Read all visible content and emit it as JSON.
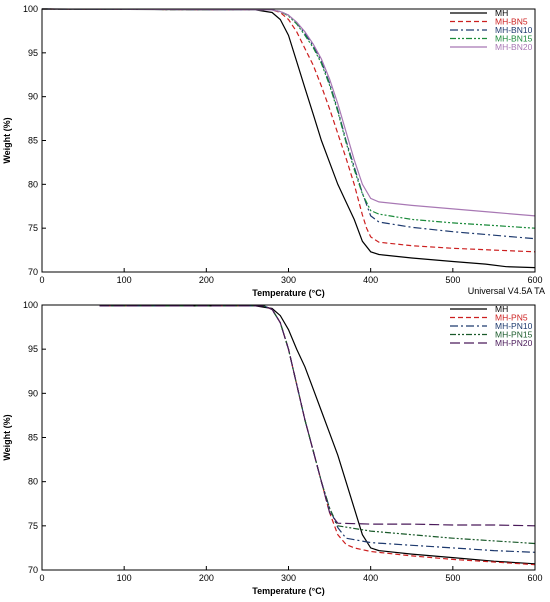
{
  "footer_text": "Universal V4.5A TA",
  "chart_data": [
    {
      "type": "line",
      "xlabel": "Temperature (°C)",
      "ylabel": "Weight (%)",
      "xlim": [
        0,
        600
      ],
      "ylim": [
        70,
        100
      ],
      "xticks": [
        0,
        100,
        200,
        300,
        400,
        500,
        600
      ],
      "yticks": [
        70,
        75,
        80,
        85,
        90,
        95,
        100
      ],
      "grid": false,
      "legend": "top-right",
      "series": [
        {
          "name": "MH",
          "color": "#000000",
          "dash": "solid",
          "x": [
            0,
            260,
            280,
            290,
            300,
            310,
            320,
            330,
            340,
            350,
            360,
            370,
            380,
            390,
            400,
            410,
            450,
            500,
            540,
            565,
            600
          ],
          "y": [
            100,
            99.9,
            99.6,
            98.8,
            97.0,
            94.0,
            91.0,
            88.0,
            85.0,
            82.5,
            80.0,
            78.0,
            76.0,
            73.5,
            72.3,
            72.0,
            71.6,
            71.2,
            70.9,
            70.6,
            70.5
          ]
        },
        {
          "name": "MH-BN5",
          "color": "#cc1f1f",
          "dash": "5,3",
          "x": [
            0,
            280,
            290,
            300,
            310,
            320,
            330,
            340,
            350,
            360,
            370,
            380,
            390,
            395,
            400,
            410,
            450,
            500,
            550,
            600
          ],
          "y": [
            100,
            99.9,
            99.6,
            98.8,
            97.4,
            95.5,
            93.6,
            91.2,
            88.6,
            85.8,
            83.0,
            80.0,
            76.5,
            75.0,
            74.0,
            73.4,
            73.0,
            72.7,
            72.5,
            72.3
          ]
        },
        {
          "name": "MH-BN10",
          "color": "#1e3a6e",
          "dash": "8,3,2,3",
          "x": [
            0,
            280,
            290,
            300,
            310,
            320,
            330,
            340,
            350,
            360,
            370,
            380,
            390,
            400,
            410,
            450,
            500,
            550,
            600
          ],
          "y": [
            100,
            99.9,
            99.7,
            99.3,
            98.4,
            97.2,
            95.8,
            94.0,
            91.5,
            88.5,
            85.0,
            82.0,
            79.0,
            76.4,
            75.7,
            75.1,
            74.6,
            74.2,
            73.8
          ]
        },
        {
          "name": "MH-BN15",
          "color": "#1a8a3a",
          "dash": "6,2,2,2,2,2",
          "x": [
            0,
            280,
            290,
            300,
            310,
            320,
            330,
            340,
            350,
            360,
            370,
            380,
            390,
            400,
            410,
            450,
            500,
            550,
            600
          ],
          "y": [
            100,
            99.9,
            99.7,
            99.2,
            98.3,
            97.0,
            95.6,
            93.8,
            91.3,
            88.3,
            84.8,
            81.7,
            78.9,
            77.0,
            76.6,
            76.0,
            75.6,
            75.3,
            75.0
          ]
        },
        {
          "name": "MH-BN20",
          "color": "#a878b4",
          "dash": "solid",
          "x": [
            0,
            280,
            290,
            300,
            310,
            320,
            330,
            340,
            350,
            360,
            370,
            380,
            390,
            400,
            410,
            450,
            500,
            550,
            600
          ],
          "y": [
            100,
            99.9,
            99.7,
            99.3,
            98.5,
            97.4,
            96.0,
            94.3,
            92.0,
            89.2,
            86.0,
            82.8,
            80.0,
            78.4,
            78.0,
            77.6,
            77.2,
            76.8,
            76.4
          ]
        }
      ]
    },
    {
      "type": "line",
      "xlabel": "Temperature (°C)",
      "ylabel": "Weight (%)",
      "xlim": [
        0,
        600
      ],
      "ylim": [
        70,
        100
      ],
      "xticks": [
        0,
        100,
        200,
        300,
        400,
        500,
        600
      ],
      "yticks": [
        70,
        75,
        80,
        85,
        90,
        95,
        100
      ],
      "grid": false,
      "legend": "top-right",
      "series": [
        {
          "name": "MH",
          "color": "#000000",
          "dash": "solid",
          "x": [
            70,
            260,
            280,
            290,
            300,
            310,
            320,
            330,
            340,
            350,
            360,
            370,
            380,
            390,
            400,
            410,
            450,
            500,
            550,
            600
          ],
          "y": [
            99.9,
            99.9,
            99.6,
            98.8,
            97.2,
            95.0,
            93.0,
            90.5,
            88.0,
            85.5,
            83.0,
            80.0,
            77.0,
            74.0,
            72.5,
            72.2,
            71.8,
            71.4,
            71.0,
            70.7
          ]
        },
        {
          "name": "MH-PN5",
          "color": "#cc1f1f",
          "dash": "5,3",
          "x": [
            70,
            270,
            280,
            290,
            300,
            310,
            320,
            330,
            340,
            350,
            360,
            370,
            380,
            400,
            450,
            500,
            550,
            600
          ],
          "y": [
            99.9,
            99.9,
            99.5,
            98.0,
            95.0,
            91.0,
            87.0,
            83.5,
            80.0,
            76.5,
            74.0,
            72.9,
            72.5,
            72.1,
            71.6,
            71.2,
            70.9,
            70.6
          ]
        },
        {
          "name": "MH-PN10",
          "color": "#1e3a6e",
          "dash": "8,3,2,3",
          "x": [
            70,
            270,
            280,
            290,
            300,
            310,
            320,
            330,
            340,
            350,
            360,
            370,
            400,
            450,
            500,
            550,
            600
          ],
          "y": [
            99.9,
            99.9,
            99.5,
            98.0,
            95.0,
            91.0,
            87.0,
            83.5,
            80.0,
            77.0,
            74.8,
            73.6,
            73.1,
            72.8,
            72.5,
            72.2,
            72.0
          ]
        },
        {
          "name": "MH-PN15",
          "color": "#1a5a2a",
          "dash": "6,2,2,2,2,2",
          "x": [
            70,
            270,
            280,
            290,
            300,
            310,
            320,
            330,
            340,
            350,
            360,
            400,
            450,
            500,
            550,
            600
          ],
          "y": [
            99.9,
            99.9,
            99.5,
            98.0,
            95.0,
            91.0,
            87.0,
            83.5,
            80.0,
            77.0,
            75.0,
            74.4,
            74.0,
            73.6,
            73.3,
            73.0
          ]
        },
        {
          "name": "MH-PN20",
          "color": "#4a1a5a",
          "dash": "10,4",
          "x": [
            70,
            270,
            280,
            290,
            300,
            310,
            320,
            330,
            340,
            350,
            360,
            400,
            450,
            500,
            550,
            600
          ],
          "y": [
            99.9,
            99.9,
            99.5,
            98.0,
            95.0,
            91.0,
            87.0,
            83.5,
            80.0,
            76.5,
            75.3,
            75.2,
            75.2,
            75.1,
            75.1,
            75.0
          ]
        }
      ]
    }
  ]
}
